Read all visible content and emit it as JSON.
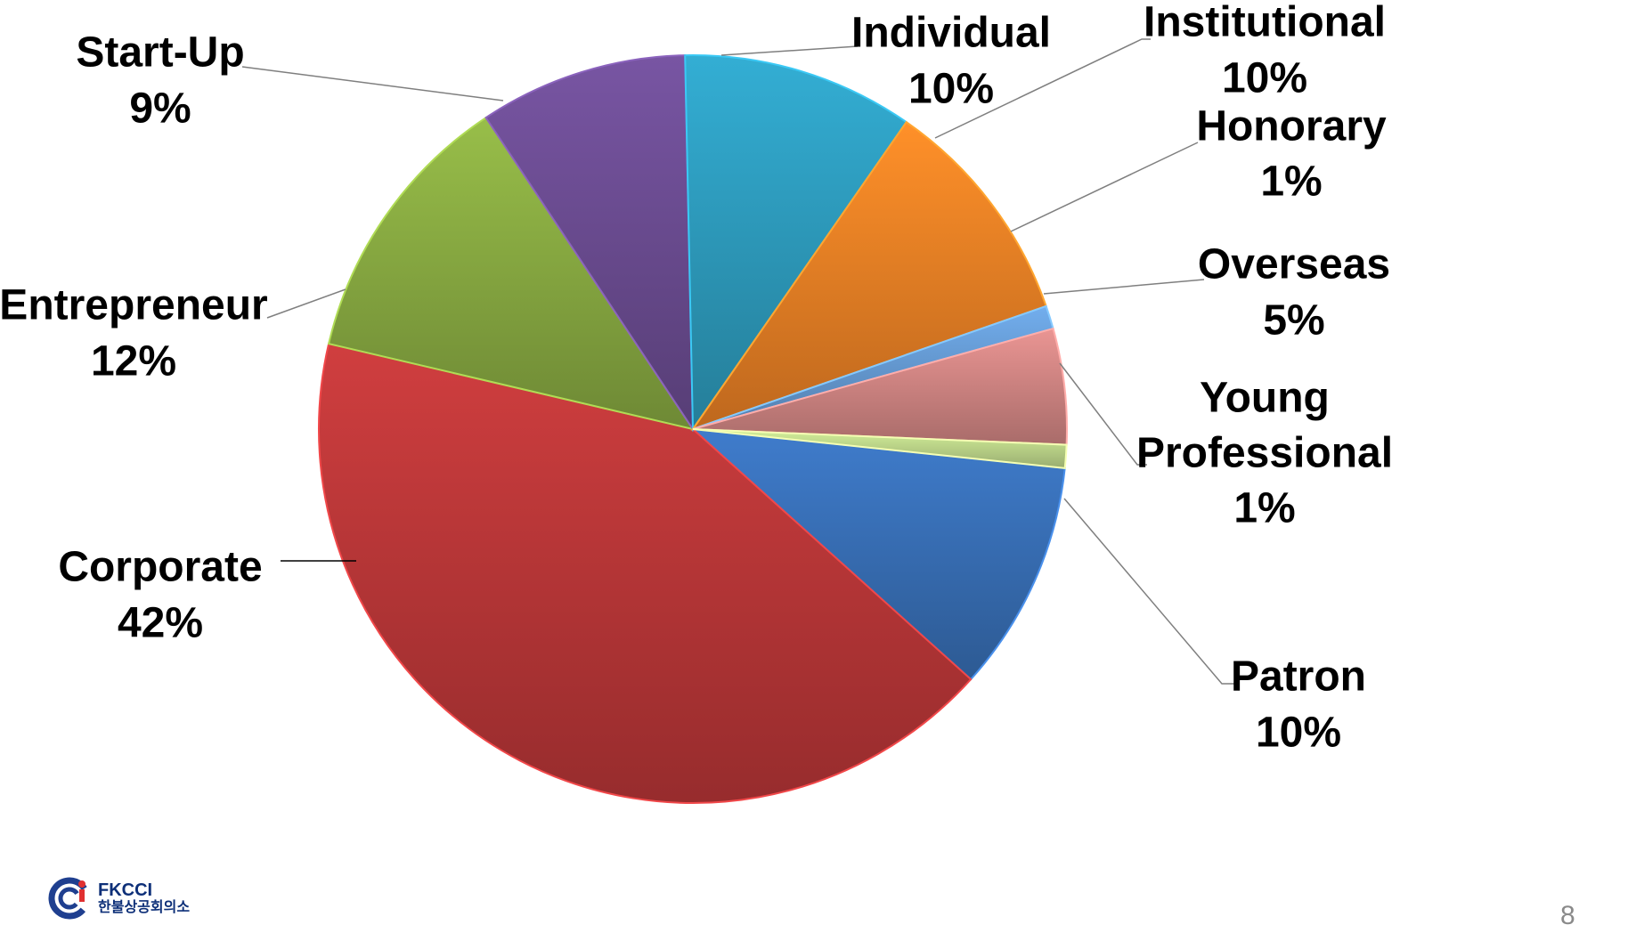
{
  "chart_data": {
    "type": "pie",
    "title": "",
    "slices": [
      {
        "label": "Patron",
        "value": 10,
        "pct_label": "10%",
        "color": "#3a73bd"
      },
      {
        "label": "Corporate",
        "value": 42,
        "pct_label": "42%",
        "color": "#c1393a"
      },
      {
        "label": "Entrepreneur",
        "value": 12,
        "pct_label": "12%",
        "color": "#8db044"
      },
      {
        "label": "Start-Up",
        "value": 9,
        "pct_label": "9%",
        "color": "#6f4f97"
      },
      {
        "label": "Individual",
        "value": 10,
        "pct_label": "10%",
        "color": "#2fa1c4"
      },
      {
        "label": "Institutional",
        "value": 10,
        "pct_label": "10%",
        "color": "#f38526"
      },
      {
        "label": "Honorary",
        "value": 1,
        "pct_label": "1%",
        "color": "#6aa1dc"
      },
      {
        "label": "Overseas",
        "value": 5,
        "pct_label": "5%",
        "color": "#d98a88"
      },
      {
        "label": "Young Professional",
        "value": 1,
        "pct_label": "1%",
        "color": "#c4de8f"
      }
    ]
  },
  "logo": {
    "brand": "FKCCI",
    "sub": "한불상공회의소"
  },
  "page_number": "8"
}
